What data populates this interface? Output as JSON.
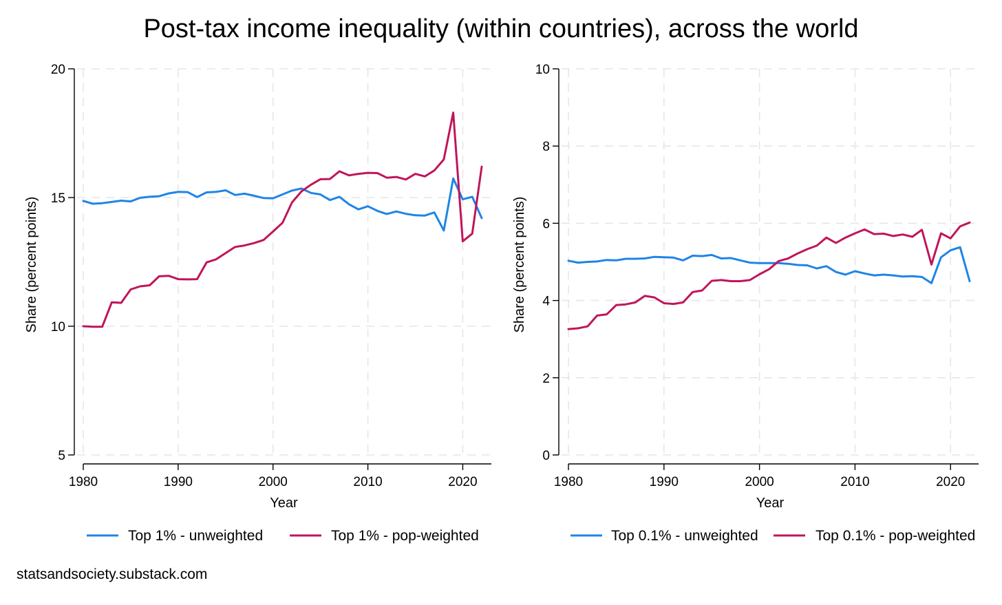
{
  "title": "Post-tax income inequality (within countries), across the world",
  "source": "statsandsociety.substack.com",
  "colors": {
    "unweighted": "#1f84e6",
    "pop_weighted": "#c0155a"
  },
  "chart_data": [
    {
      "type": "line",
      "id": "top1",
      "xlabel": "Year",
      "ylabel": "Share (percent points)",
      "xlim": [
        1980,
        2022
      ],
      "ylim": [
        5,
        20
      ],
      "xticks": [
        1980,
        1990,
        2000,
        2010,
        2020
      ],
      "yticks": [
        5,
        10,
        15,
        20
      ],
      "grid": true,
      "legend_position": "bottom",
      "x": [
        1980,
        1981,
        1982,
        1983,
        1984,
        1985,
        1986,
        1987,
        1988,
        1989,
        1990,
        1991,
        1992,
        1993,
        1994,
        1995,
        1996,
        1997,
        1998,
        1999,
        2000,
        2001,
        2002,
        2003,
        2004,
        2005,
        2006,
        2007,
        2008,
        2009,
        2010,
        2011,
        2012,
        2013,
        2014,
        2015,
        2016,
        2017,
        2018,
        2019,
        2020,
        2021,
        2022
      ],
      "series": [
        {
          "name": "Top 1% - unweighted",
          "color_key": "unweighted",
          "values": [
            14.87,
            14.76,
            14.78,
            14.83,
            14.88,
            14.85,
            14.99,
            15.03,
            15.05,
            15.16,
            15.22,
            15.21,
            15.02,
            15.2,
            15.22,
            15.28,
            15.1,
            15.15,
            15.07,
            14.98,
            14.97,
            15.12,
            15.27,
            15.35,
            15.18,
            15.12,
            14.9,
            15.03,
            14.74,
            14.54,
            14.66,
            14.48,
            14.36,
            14.46,
            14.37,
            14.31,
            14.3,
            14.42,
            13.72,
            15.74,
            14.93,
            15.03,
            14.2
          ]
        },
        {
          "name": "Top 1% - pop-weighted",
          "color_key": "pop_weighted",
          "values": [
            10.0,
            9.98,
            9.98,
            10.93,
            10.91,
            11.43,
            11.55,
            11.59,
            11.94,
            11.96,
            11.83,
            11.82,
            11.83,
            12.48,
            12.6,
            12.84,
            13.08,
            13.14,
            13.23,
            13.35,
            13.68,
            14.02,
            14.81,
            15.24,
            15.5,
            15.71,
            15.72,
            16.02,
            15.86,
            15.92,
            15.96,
            15.95,
            15.77,
            15.8,
            15.7,
            15.92,
            15.82,
            16.05,
            16.48,
            18.3,
            13.3,
            13.6,
            16.2
          ]
        }
      ]
    },
    {
      "type": "line",
      "id": "top01",
      "xlabel": "Year",
      "ylabel": "Share (percent points)",
      "xlim": [
        1980,
        2022
      ],
      "ylim": [
        0,
        10
      ],
      "xticks": [
        1980,
        1990,
        2000,
        2010,
        2020
      ],
      "yticks": [
        0,
        2,
        4,
        6,
        8,
        10
      ],
      "grid": true,
      "legend_position": "bottom",
      "x": [
        1980,
        1981,
        1982,
        1983,
        1984,
        1985,
        1986,
        1987,
        1988,
        1989,
        1990,
        1991,
        1992,
        1993,
        1994,
        1995,
        1996,
        1997,
        1998,
        1999,
        2000,
        2001,
        2002,
        2003,
        2004,
        2005,
        2006,
        2007,
        2008,
        2009,
        2010,
        2011,
        2012,
        2013,
        2014,
        2015,
        2016,
        2017,
        2018,
        2019,
        2020,
        2021,
        2022
      ],
      "series": [
        {
          "name": "Top 0.1% - unweighted",
          "color_key": "unweighted",
          "values": [
            5.03,
            4.98,
            5.0,
            5.01,
            5.05,
            5.04,
            5.08,
            5.08,
            5.09,
            5.13,
            5.12,
            5.11,
            5.04,
            5.16,
            5.15,
            5.18,
            5.09,
            5.1,
            5.04,
            4.98,
            4.97,
            4.97,
            4.97,
            4.95,
            4.92,
            4.91,
            4.83,
            4.89,
            4.74,
            4.67,
            4.76,
            4.7,
            4.65,
            4.67,
            4.65,
            4.62,
            4.63,
            4.61,
            4.45,
            5.12,
            5.3,
            5.38,
            4.5
          ]
        },
        {
          "name": "Top 0.1% - pop-weighted",
          "color_key": "pop_weighted",
          "values": [
            3.26,
            3.28,
            3.33,
            3.61,
            3.64,
            3.88,
            3.9,
            3.95,
            4.12,
            4.08,
            3.93,
            3.91,
            3.95,
            4.22,
            4.26,
            4.51,
            4.53,
            4.5,
            4.5,
            4.53,
            4.68,
            4.81,
            5.02,
            5.09,
            5.22,
            5.33,
            5.42,
            5.63,
            5.49,
            5.63,
            5.74,
            5.84,
            5.72,
            5.73,
            5.67,
            5.71,
            5.65,
            5.83,
            4.93,
            5.74,
            5.61,
            5.92,
            6.02
          ]
        }
      ]
    }
  ]
}
